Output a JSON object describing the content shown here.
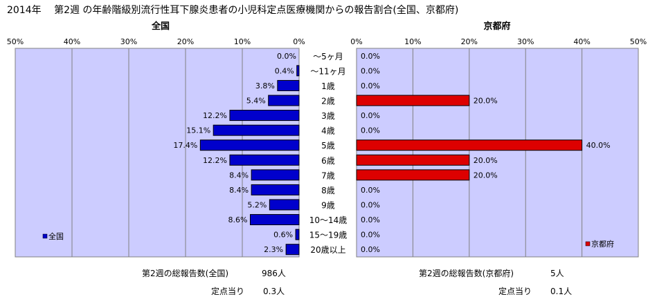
{
  "chart_data": {
    "type": "bar",
    "title": "2014年　 第2週 の年齢階級別流行性耳下腺炎患者の小児科定点医療機関からの報告割合(全国、京都府)",
    "categories": [
      "～5ヶ月",
      "～11ヶ月",
      "1歳",
      "2歳",
      "3歳",
      "4歳",
      "5歳",
      "6歳",
      "7歳",
      "8歳",
      "9歳",
      "10～14歳",
      "15～19歳",
      "20歳以上"
    ],
    "xlim": [
      0,
      50
    ],
    "ticks": [
      "50%",
      "40%",
      "30%",
      "20%",
      "10%",
      "0%"
    ],
    "ticks_right": [
      "0%",
      "10%",
      "20%",
      "30%",
      "40%",
      "50%"
    ],
    "grid": true,
    "series": [
      {
        "name": "全国",
        "panel_title": "全国",
        "color": "#0000cc",
        "values": [
          0.0,
          0.4,
          3.8,
          5.4,
          12.2,
          15.1,
          17.4,
          12.2,
          8.4,
          8.4,
          5.2,
          8.6,
          0.6,
          2.3
        ],
        "labels": [
          "0.0%",
          "0.4%",
          "3.8%",
          "5.4%",
          "12.2%",
          "15.1%",
          "17.4%",
          "12.2%",
          "8.4%",
          "8.4%",
          "5.2%",
          "8.6%",
          "0.6%",
          "2.3%"
        ]
      },
      {
        "name": "京都府",
        "panel_title": "京都府",
        "color": "#dd0000",
        "values": [
          0.0,
          0.0,
          0.0,
          20.0,
          0.0,
          0.0,
          40.0,
          20.0,
          20.0,
          0.0,
          0.0,
          0.0,
          0.0,
          0.0
        ],
        "labels": [
          "0.0%",
          "0.0%",
          "0.0%",
          "20.0%",
          "0.0%",
          "0.0%",
          "40.0%",
          "20.0%",
          "20.0%",
          "0.0%",
          "0.0%",
          "0.0%",
          "0.0%",
          "0.0%"
        ]
      }
    ]
  },
  "footer": {
    "national_total_label": "第2週の総報告数(全国)",
    "national_total_value": "986人",
    "national_per_label": "定点当り",
    "national_per_value": "0.3人",
    "kyoto_total_label": "第2週の総報告数(京都府)",
    "kyoto_total_value": "5人",
    "kyoto_per_label": "定点当り",
    "kyoto_per_value": "0.1人"
  }
}
